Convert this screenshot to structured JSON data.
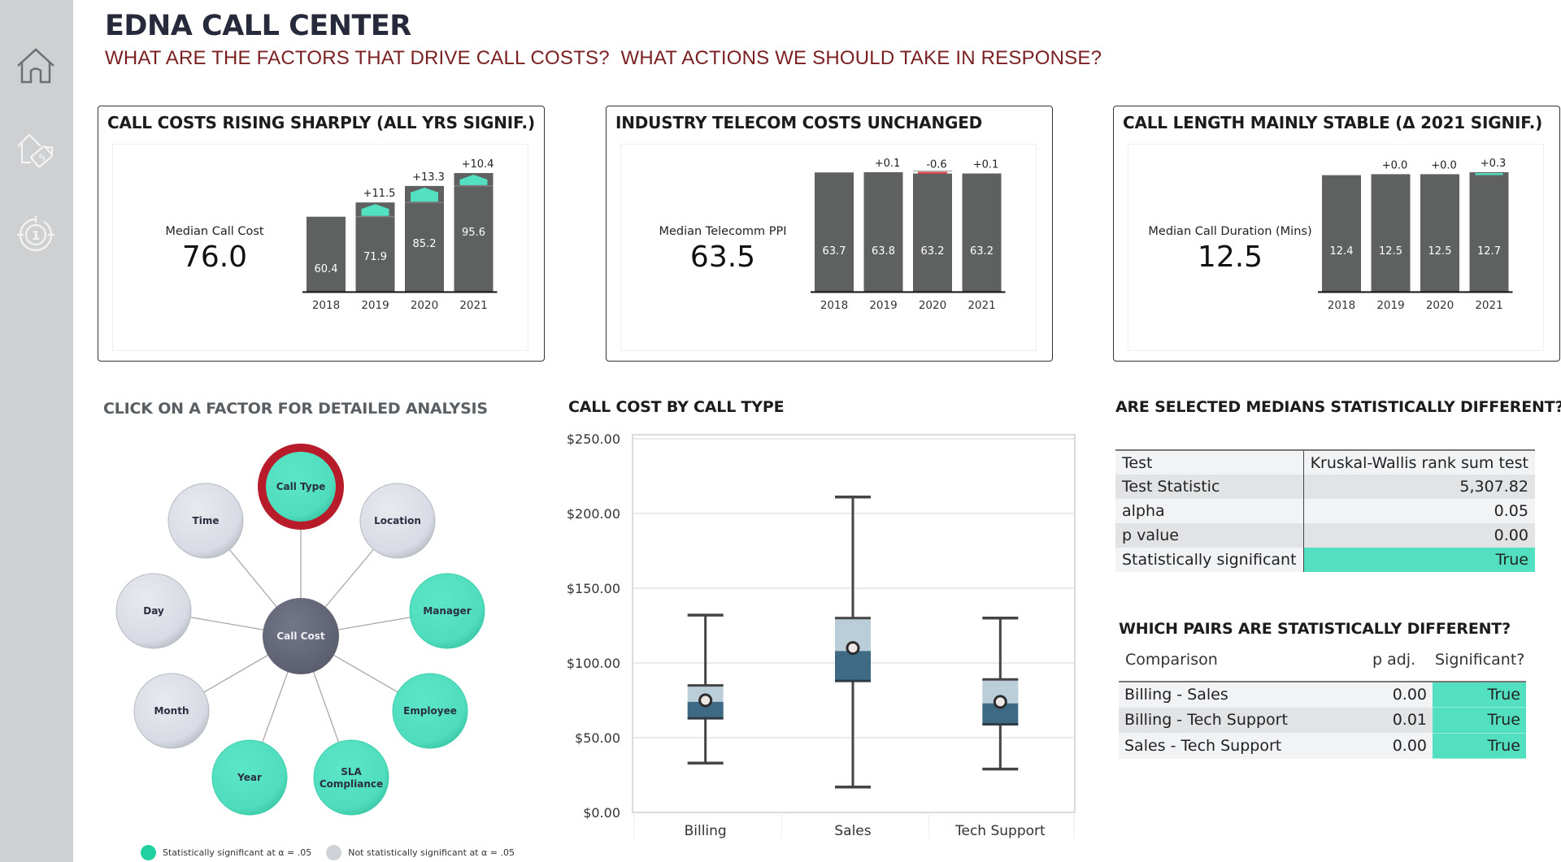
{
  "header": {
    "title": "EDNA CALL CENTER",
    "subtitle": "WHAT ARE THE FACTORS THAT DRIVE CALL COSTS?  WHAT ACTIONS WE SHOULD TAKE IN RESPONSE?"
  },
  "sidebar": {
    "items": [
      {
        "icon": "home-icon",
        "label": "Home"
      },
      {
        "icon": "house-price-tag-icon",
        "label": "Call Costs"
      },
      {
        "icon": "target-one-icon",
        "label": "Factor Analysis"
      }
    ]
  },
  "colors": {
    "bar": "#5f6161",
    "increase": "#52e0c0",
    "decrease": "#d64545",
    "significant": "#52e0c0",
    "not_significant": "#d9dce3",
    "selected_ring": "#b81c2a",
    "center_node": "#6a6d7c",
    "title": "#262a3a",
    "subtitle": "#7a1f22",
    "box_upper": "#b9ced9",
    "box_lower": "#3f6a85"
  },
  "cards": [
    {
      "title": "CALL COSTS RISING SHARPLY (ALL YRS SIGNIF.)",
      "kpi_label": "Median Call Cost",
      "kpi_value": "76.0",
      "years": [
        "2018",
        "2019",
        "2020",
        "2021"
      ],
      "values": [
        "60.4",
        "71.9",
        "85.2",
        "95.6"
      ],
      "deltas": [
        "",
        "+11.5",
        "+13.3",
        "+10.4"
      ]
    },
    {
      "title": "INDUSTRY TELECOM COSTS UNCHANGED",
      "kpi_label": "Median Telecomm PPI",
      "kpi_value": "63.5",
      "years": [
        "2018",
        "2019",
        "2020",
        "2021"
      ],
      "values": [
        "63.7",
        "63.8",
        "63.2",
        "63.2"
      ],
      "deltas": [
        "",
        "+0.1",
        "-0.6",
        "+0.1"
      ]
    },
    {
      "title": "CALL LENGTH MAINLY STABLE (Δ 2021 SIGNIF.)",
      "kpi_label": "Median Call Duration (Mins)",
      "kpi_value": "12.5",
      "years": [
        "2018",
        "2019",
        "2020",
        "2021"
      ],
      "values": [
        "12.4",
        "12.5",
        "12.5",
        "12.7"
      ],
      "deltas": [
        "",
        "+0.0",
        "+0.0",
        "+0.3"
      ]
    }
  ],
  "factors": {
    "title": "CLICK ON A FACTOR FOR DETAILED ANALYSIS",
    "center": "Call Cost",
    "nodes": [
      {
        "label": "Call Type",
        "significant": true,
        "selected": true
      },
      {
        "label": "Location",
        "significant": false,
        "selected": false
      },
      {
        "label": "Manager",
        "significant": true,
        "selected": false
      },
      {
        "label": "Employee",
        "significant": true,
        "selected": false
      },
      {
        "label": "SLA",
        "label2": "Compliance",
        "significant": true,
        "selected": false
      },
      {
        "label": "Year",
        "significant": true,
        "selected": false
      },
      {
        "label": "Month",
        "significant": false,
        "selected": false
      },
      {
        "label": "Day",
        "significant": false,
        "selected": false
      },
      {
        "label": "Time",
        "significant": false,
        "selected": false
      }
    ],
    "legend": {
      "significant": "Statistically significant at α = .05",
      "not_significant": "Not statistically significant at α = .05"
    }
  },
  "boxplot": {
    "title": "CALL COST BY CALL TYPE",
    "y_ticks": [
      "$250.00",
      "$200.00",
      "$150.00",
      "$100.00",
      "$50.00",
      "$0.00"
    ],
    "categories": [
      "Billing",
      "Sales",
      "Tech Support"
    ]
  },
  "stats": {
    "title": "ARE SELECTED MEDIANS STATISTICALLY DIFFERENT?",
    "rows": [
      {
        "key": "Test",
        "value": "Kruskal-Wallis rank sum test"
      },
      {
        "key": "Test Statistic",
        "value": "5,307.82"
      },
      {
        "key": "alpha",
        "value": "0.05"
      },
      {
        "key": "p value",
        "value": "0.00"
      },
      {
        "key": "Statistically significant",
        "value": "True"
      }
    ]
  },
  "pairs": {
    "title": "WHICH PAIRS ARE STATISTICALLY DIFFERENT?",
    "headers": {
      "comparison": "Comparison",
      "p_adj": "p adj.",
      "significant": "Significant?"
    },
    "rows": [
      {
        "comparison": "Billing - Sales",
        "p_adj": "0.00",
        "significant": "True"
      },
      {
        "comparison": "Billing - Tech Support",
        "p_adj": "0.01",
        "significant": "True"
      },
      {
        "comparison": "Sales - Tech Support",
        "p_adj": "0.00",
        "significant": "True"
      }
    ]
  },
  "chart_data": [
    {
      "type": "bar",
      "title": "CALL COSTS RISING SHARPLY (ALL YRS SIGNIF.)",
      "categories": [
        "2018",
        "2019",
        "2020",
        "2021"
      ],
      "values": [
        60.4,
        71.9,
        85.2,
        95.6
      ],
      "deltas": [
        null,
        11.5,
        13.3,
        10.4
      ],
      "kpi": {
        "label": "Median Call Cost",
        "value": 76.0
      },
      "xlabel": "",
      "ylabel": ""
    },
    {
      "type": "bar",
      "title": "INDUSTRY TELECOM COSTS UNCHANGED",
      "categories": [
        "2018",
        "2019",
        "2020",
        "2021"
      ],
      "values": [
        63.7,
        63.8,
        63.2,
        63.2
      ],
      "deltas": [
        null,
        0.1,
        -0.6,
        0.1
      ],
      "kpi": {
        "label": "Median Telecomm PPI",
        "value": 63.5
      },
      "xlabel": "",
      "ylabel": ""
    },
    {
      "type": "bar",
      "title": "CALL LENGTH MAINLY STABLE (Δ 2021 SIGNIF.)",
      "categories": [
        "2018",
        "2019",
        "2020",
        "2021"
      ],
      "values": [
        12.4,
        12.5,
        12.5,
        12.7
      ],
      "deltas": [
        null,
        0.0,
        0.0,
        0.3
      ],
      "kpi": {
        "label": "Median Call Duration (Mins)",
        "value": 12.5
      },
      "xlabel": "",
      "ylabel": ""
    },
    {
      "type": "boxplot",
      "title": "CALL COST BY CALL TYPE",
      "categories": [
        "Billing",
        "Sales",
        "Tech Support"
      ],
      "series": [
        {
          "name": "Billing",
          "min": 33,
          "q1": 63,
          "median": 74,
          "mean": 75,
          "q3": 85,
          "max": 132
        },
        {
          "name": "Sales",
          "min": 17,
          "q1": 88,
          "median": 108,
          "mean": 110,
          "q3": 130,
          "max": 211
        },
        {
          "name": "Tech Support",
          "min": 29,
          "q1": 59,
          "median": 73,
          "mean": 74,
          "q3": 89,
          "max": 130
        }
      ],
      "ylim": [
        0,
        250
      ],
      "y_ticks": [
        0,
        50,
        100,
        150,
        200,
        250
      ],
      "ylabel": "",
      "xlabel": "",
      "grid": true
    }
  ]
}
